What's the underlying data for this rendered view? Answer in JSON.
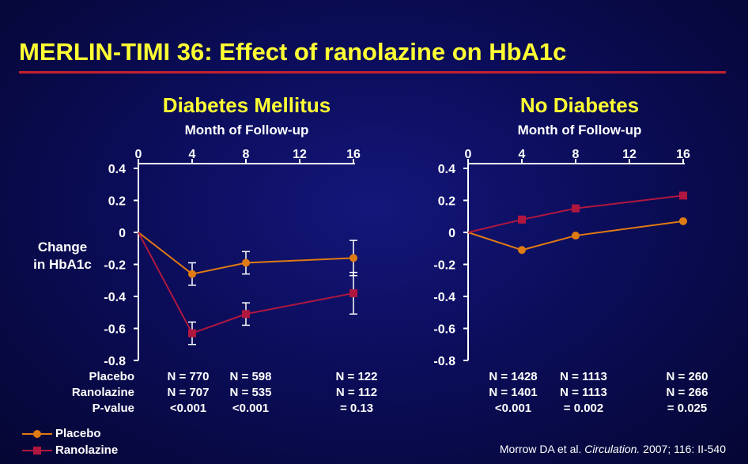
{
  "title": "MERLIN-TIMI 36: Effect of ranolazine on HbA1c",
  "colors": {
    "placebo": "#e07a12",
    "ranolazine": "#b0173f",
    "title": "#ffff33",
    "rule": "#c4222f"
  },
  "y_axis_label_line1": "Change",
  "y_axis_label_line2": "in HbA1c",
  "row_labels": [
    "Placebo",
    "Ranolazine",
    "P-value"
  ],
  "legend": [
    {
      "name": "Placebo",
      "marker": "circle"
    },
    {
      "name": "Ranolazine",
      "marker": "square"
    }
  ],
  "citation": {
    "prefix": "Morrow DA et al. ",
    "journal": "Circulation.",
    "suffix": " 2007; 116: II-540"
  },
  "chart_data": [
    {
      "type": "line",
      "title": "Diabetes Mellitus",
      "xlabel": "Month of Follow-up",
      "ylabel": "Change in HbA1c",
      "x_ticks": [
        "0",
        "4",
        "8",
        "12",
        "16"
      ],
      "y_ticks": [
        "0.4",
        "0.2",
        "0",
        "-0.2",
        "-0.4",
        "-0.6",
        "-0.8"
      ],
      "xlim": [
        0,
        16
      ],
      "ylim": [
        -0.8,
        0.4
      ],
      "grid": false,
      "series": [
        {
          "name": "Placebo",
          "marker": "circle",
          "x": [
            0,
            4,
            8,
            16
          ],
          "y": [
            0,
            -0.26,
            -0.19,
            -0.16
          ],
          "error": [
            null,
            0.07,
            0.07,
            0.11
          ]
        },
        {
          "name": "Ranolazine",
          "marker": "square",
          "x": [
            0,
            4,
            8,
            16
          ],
          "y": [
            0,
            -0.63,
            -0.51,
            -0.38
          ],
          "error": [
            null,
            0.07,
            0.07,
            0.13
          ]
        }
      ],
      "n_table": {
        "placebo": [
          "N = 770",
          "N = 598",
          "N = 122"
        ],
        "ranolazine": [
          "N = 707",
          "N = 535",
          "N = 112"
        ],
        "p_value": [
          "<0.001",
          "<0.001",
          "= 0.13"
        ]
      }
    },
    {
      "type": "line",
      "title": "No Diabetes",
      "xlabel": "Month of Follow-up",
      "ylabel": "",
      "x_ticks": [
        "0",
        "4",
        "8",
        "12",
        "16"
      ],
      "y_ticks": [
        "0.4",
        "0.2",
        "0",
        "-0.2",
        "-0.4",
        "-0.6",
        "-0.8"
      ],
      "xlim": [
        0,
        16
      ],
      "ylim": [
        -0.8,
        0.4
      ],
      "grid": false,
      "series": [
        {
          "name": "Placebo",
          "marker": "circle",
          "x": [
            0,
            4,
            8,
            16
          ],
          "y": [
            0,
            -0.11,
            -0.02,
            0.07
          ]
        },
        {
          "name": "Ranolazine",
          "marker": "square",
          "x": [
            0,
            4,
            8,
            16
          ],
          "y": [
            0,
            0.08,
            0.15,
            0.23
          ]
        }
      ],
      "n_table": {
        "placebo": [
          "N = 1428",
          "N = 1113",
          "N = 260"
        ],
        "ranolazine": [
          "N = 1401",
          "N = 1113",
          "N = 266"
        ],
        "p_value": [
          "<0.001",
          "= 0.002",
          "= 0.025"
        ]
      }
    }
  ]
}
